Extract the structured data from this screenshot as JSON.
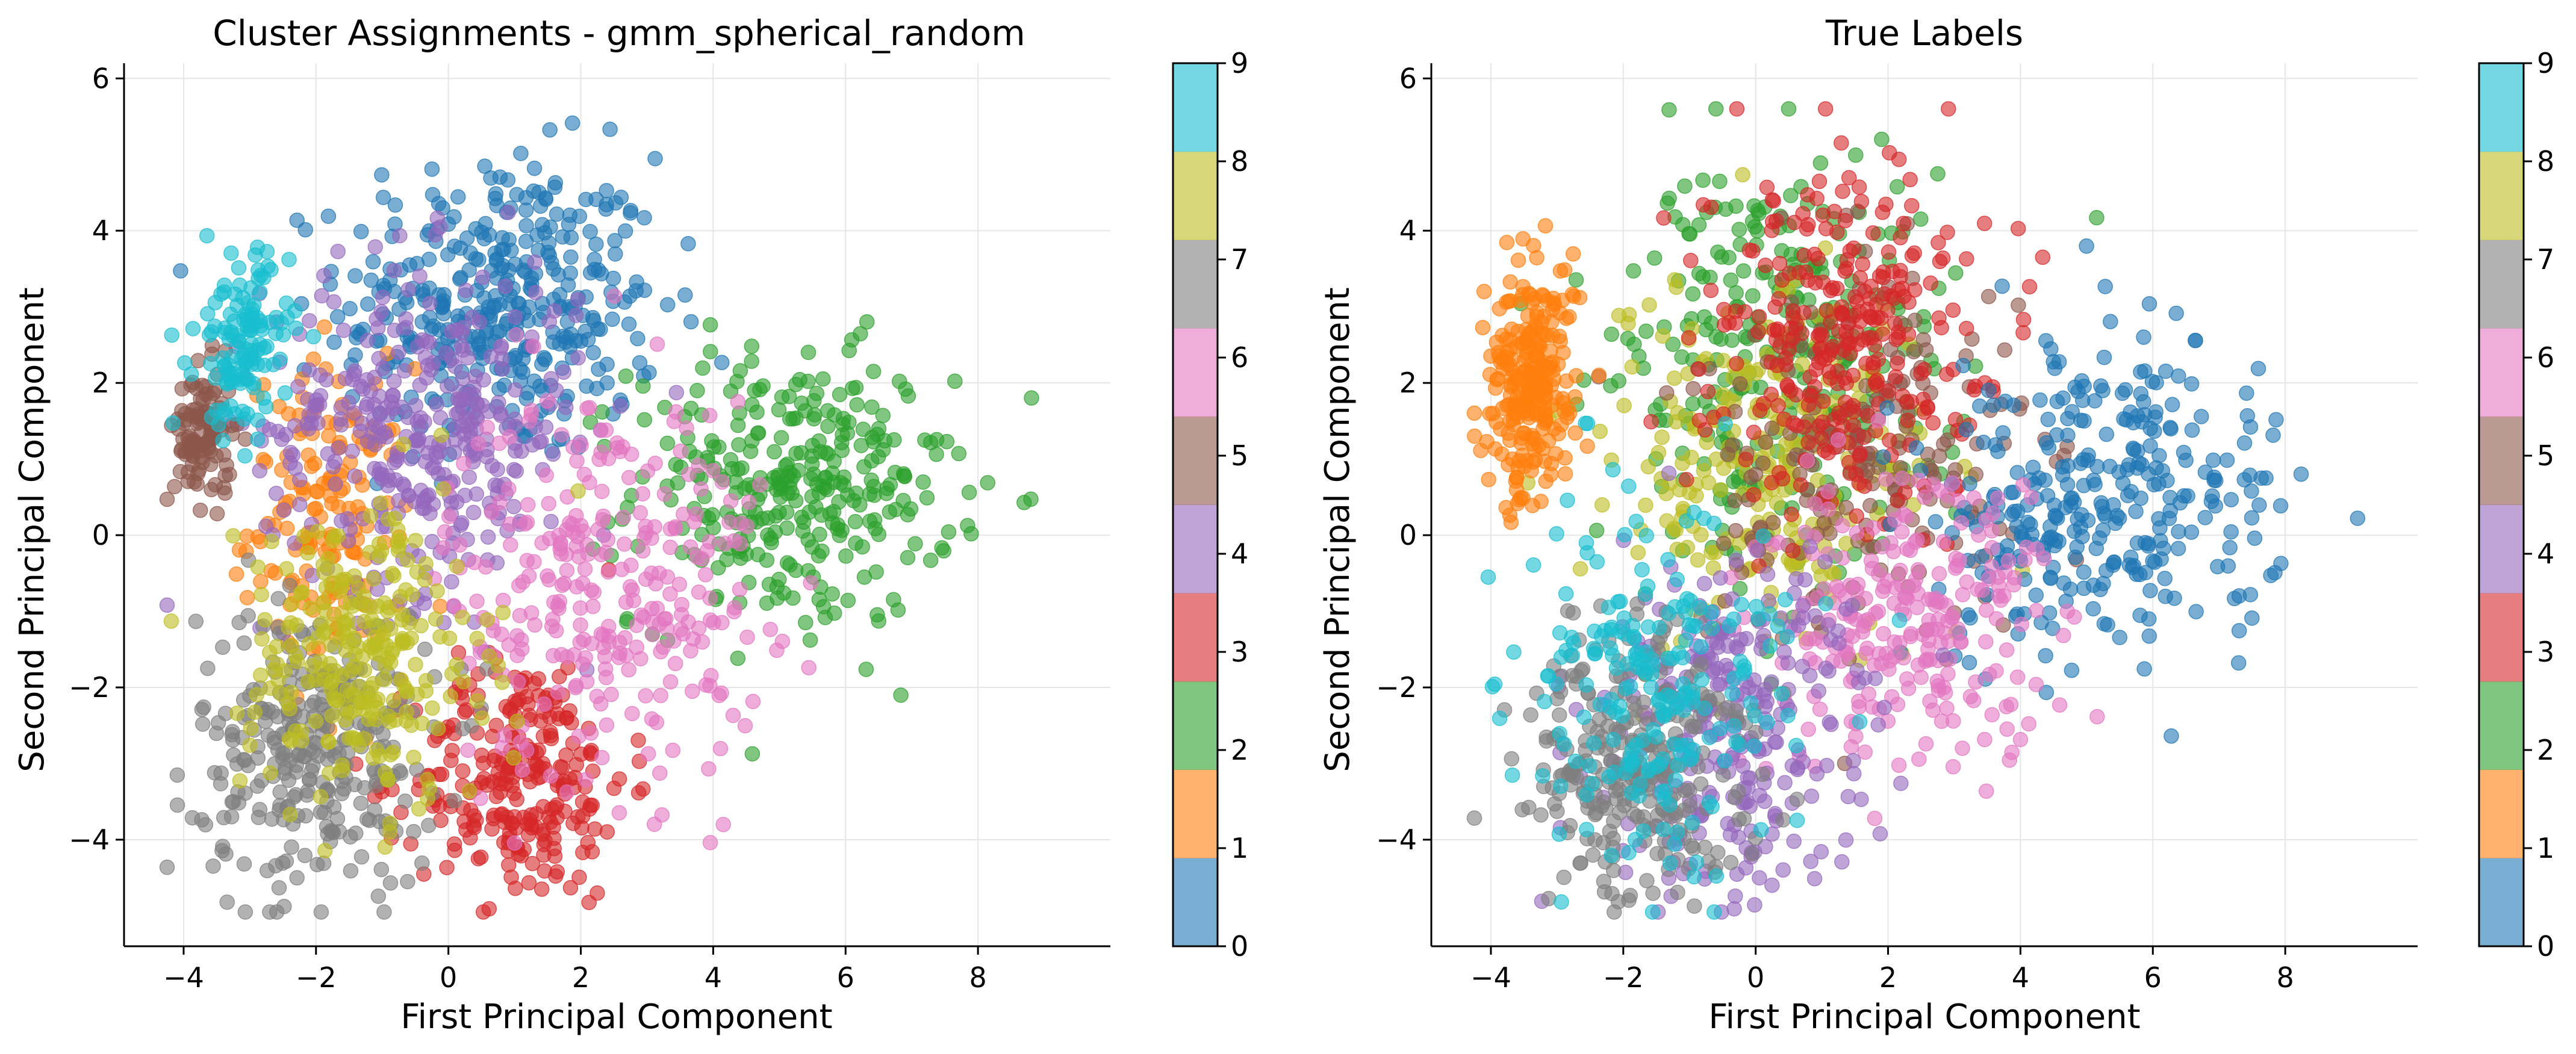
{
  "palette": [
    "#1f77b4",
    "#ff7f0e",
    "#2ca02c",
    "#d62728",
    "#9467bd",
    "#8c564b",
    "#e377c2",
    "#7f7f7f",
    "#bcbd22",
    "#17becf"
  ],
  "chart_data": [
    {
      "type": "scatter",
      "title": "Cluster Assignments - gmm_spherical_random",
      "xlabel": "First Principal Component",
      "ylabel": "Second Principal Component",
      "xlim": [
        -4.9,
        10.0
      ],
      "ylim": [
        -5.4,
        6.2
      ],
      "xticks": [
        -4,
        -2,
        0,
        2,
        4,
        6,
        8
      ],
      "yticks": [
        -4,
        -2,
        0,
        2,
        4,
        6
      ],
      "grid": true,
      "colorbar": {
        "ticks": [
          0,
          1,
          2,
          3,
          4,
          5,
          6,
          7,
          8,
          9
        ],
        "range": [
          0,
          9
        ],
        "cmap": "tab10"
      },
      "series": [
        {
          "label_value": 0,
          "color": "#1f77b4",
          "center": [
            0.8,
            3.0
          ],
          "spread": [
            1.2,
            1.0
          ],
          "count": 380
        },
        {
          "label_value": 1,
          "color": "#ff7f0e",
          "center": [
            -1.8,
            0.2
          ],
          "spread": [
            0.6,
            1.0
          ],
          "count": 160
        },
        {
          "label_value": 2,
          "color": "#2ca02c",
          "center": [
            5.2,
            0.6
          ],
          "spread": [
            1.2,
            0.9
          ],
          "count": 320
        },
        {
          "label_value": 3,
          "color": "#d62728",
          "center": [
            1.1,
            -3.2
          ],
          "spread": [
            0.8,
            0.8
          ],
          "count": 260
        },
        {
          "label_value": 4,
          "color": "#9467bd",
          "center": [
            -0.4,
            1.4
          ],
          "spread": [
            1.2,
            1.1
          ],
          "count": 360
        },
        {
          "label_value": 5,
          "color": "#8c564b",
          "center": [
            -3.7,
            1.3
          ],
          "spread": [
            0.22,
            0.45
          ],
          "count": 110
        },
        {
          "label_value": 6,
          "color": "#e377c2",
          "center": [
            2.4,
            -0.6
          ],
          "spread": [
            1.2,
            1.3
          ],
          "count": 300
        },
        {
          "label_value": 7,
          "color": "#7f7f7f",
          "center": [
            -2.0,
            -2.8
          ],
          "spread": [
            0.9,
            0.9
          ],
          "count": 300
        },
        {
          "label_value": 8,
          "color": "#bcbd22",
          "center": [
            -1.3,
            -1.6
          ],
          "spread": [
            0.9,
            1.0
          ],
          "count": 260
        },
        {
          "label_value": 9,
          "color": "#17becf",
          "center": [
            -3.1,
            2.5
          ],
          "spread": [
            0.35,
            0.6
          ],
          "count": 130
        }
      ]
    },
    {
      "type": "scatter",
      "title": "True Labels",
      "xlabel": "First Principal Component",
      "ylabel": "Second Principal Component",
      "xlim": [
        -4.9,
        10.0
      ],
      "ylim": [
        -5.4,
        6.2
      ],
      "xticks": [
        -4,
        -2,
        0,
        2,
        4,
        6,
        8
      ],
      "yticks": [
        -4,
        -2,
        0,
        2,
        4,
        6
      ],
      "grid": true,
      "colorbar": {
        "ticks": [
          0,
          1,
          2,
          3,
          4,
          5,
          6,
          7,
          8,
          9
        ],
        "range": [
          0,
          9
        ],
        "cmap": "tab10"
      },
      "series": [
        {
          "label_value": 2,
          "color": "#2ca02c",
          "center": [
            0.3,
            2.2
          ],
          "spread": [
            1.2,
            1.4
          ],
          "count": 300
        },
        {
          "label_value": 8,
          "color": "#bcbd22",
          "center": [
            0.0,
            1.0
          ],
          "spread": [
            1.4,
            1.2
          ],
          "count": 250
        },
        {
          "label_value": 5,
          "color": "#8c564b",
          "center": [
            1.5,
            1.0
          ],
          "spread": [
            1.4,
            1.3
          ],
          "count": 200
        },
        {
          "label_value": 3,
          "color": "#d62728",
          "center": [
            1.4,
            2.5
          ],
          "spread": [
            1.0,
            1.2
          ],
          "count": 300
        },
        {
          "label_value": 0,
          "color": "#1f77b4",
          "center": [
            5.3,
            0.5
          ],
          "spread": [
            1.3,
            1.0
          ],
          "count": 320
        },
        {
          "label_value": 6,
          "color": "#e377c2",
          "center": [
            2.3,
            -1.2
          ],
          "spread": [
            1.2,
            1.0
          ],
          "count": 250
        },
        {
          "label_value": 4,
          "color": "#9467bd",
          "center": [
            -0.3,
            -2.6
          ],
          "spread": [
            1.0,
            1.1
          ],
          "count": 280
        },
        {
          "label_value": 7,
          "color": "#7f7f7f",
          "center": [
            -1.8,
            -2.9
          ],
          "spread": [
            0.9,
            0.9
          ],
          "count": 280
        },
        {
          "label_value": 9,
          "color": "#17becf",
          "center": [
            -1.5,
            -2.0
          ],
          "spread": [
            1.0,
            1.2
          ],
          "count": 220
        },
        {
          "label_value": 1,
          "color": "#ff7f0e",
          "center": [
            -3.4,
            2.0
          ],
          "spread": [
            0.35,
            0.8
          ],
          "count": 260
        }
      ]
    }
  ]
}
